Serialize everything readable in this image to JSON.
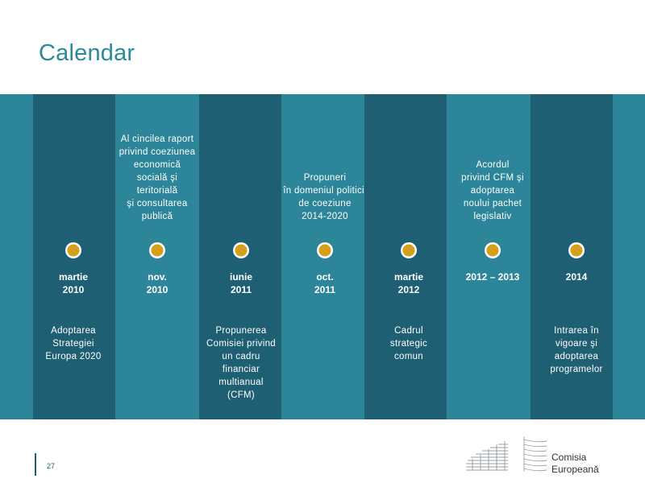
{
  "header": {
    "title": "Calendar"
  },
  "timeline": [
    {
      "date": "martie\n2010",
      "top": "",
      "bottom": "Adoptarea\nStrategiei\nEuropa 2020",
      "dark": true
    },
    {
      "date": "nov.\n2010",
      "top": "Al cincilea raport\nprivind coeziunea\neconomică\nsocială şi\nteritorială\nşi consultarea\npublică",
      "bottom": "",
      "dark": false
    },
    {
      "date": "iunie\n2011",
      "top": "",
      "bottom": "Propunerea\nComisiei privind\nun cadru\nfinanciar\nmultianual\n(CFM)",
      "dark": true
    },
    {
      "date": "oct.\n2011",
      "top": "Propuneri\nîn domeniul politicii\nde coeziune\n2014-2020",
      "bottom": "",
      "dark": false
    },
    {
      "date": "martie\n2012",
      "top": "",
      "bottom": "Cadrul\nstrategic\ncomun",
      "dark": true
    },
    {
      "date": "2012 – 2013",
      "top": "Acordul\nprivind CFM şi\nadoptarea\nnoului pachet\nlegislativ",
      "bottom": "",
      "dark": false
    },
    {
      "date": "2014",
      "top": "",
      "bottom": "Intrarea în\nvigoare şi\nadoptarea\nprogramelor",
      "dark": true
    }
  ],
  "footer": {
    "page_number": "27",
    "logo_line1": "Comisia",
    "logo_line2": "Europeană"
  },
  "colors": {
    "band": "#2d8599",
    "column_dark": "#1f5f74",
    "dot": "#d4a017",
    "title": "#2a8a9a"
  }
}
